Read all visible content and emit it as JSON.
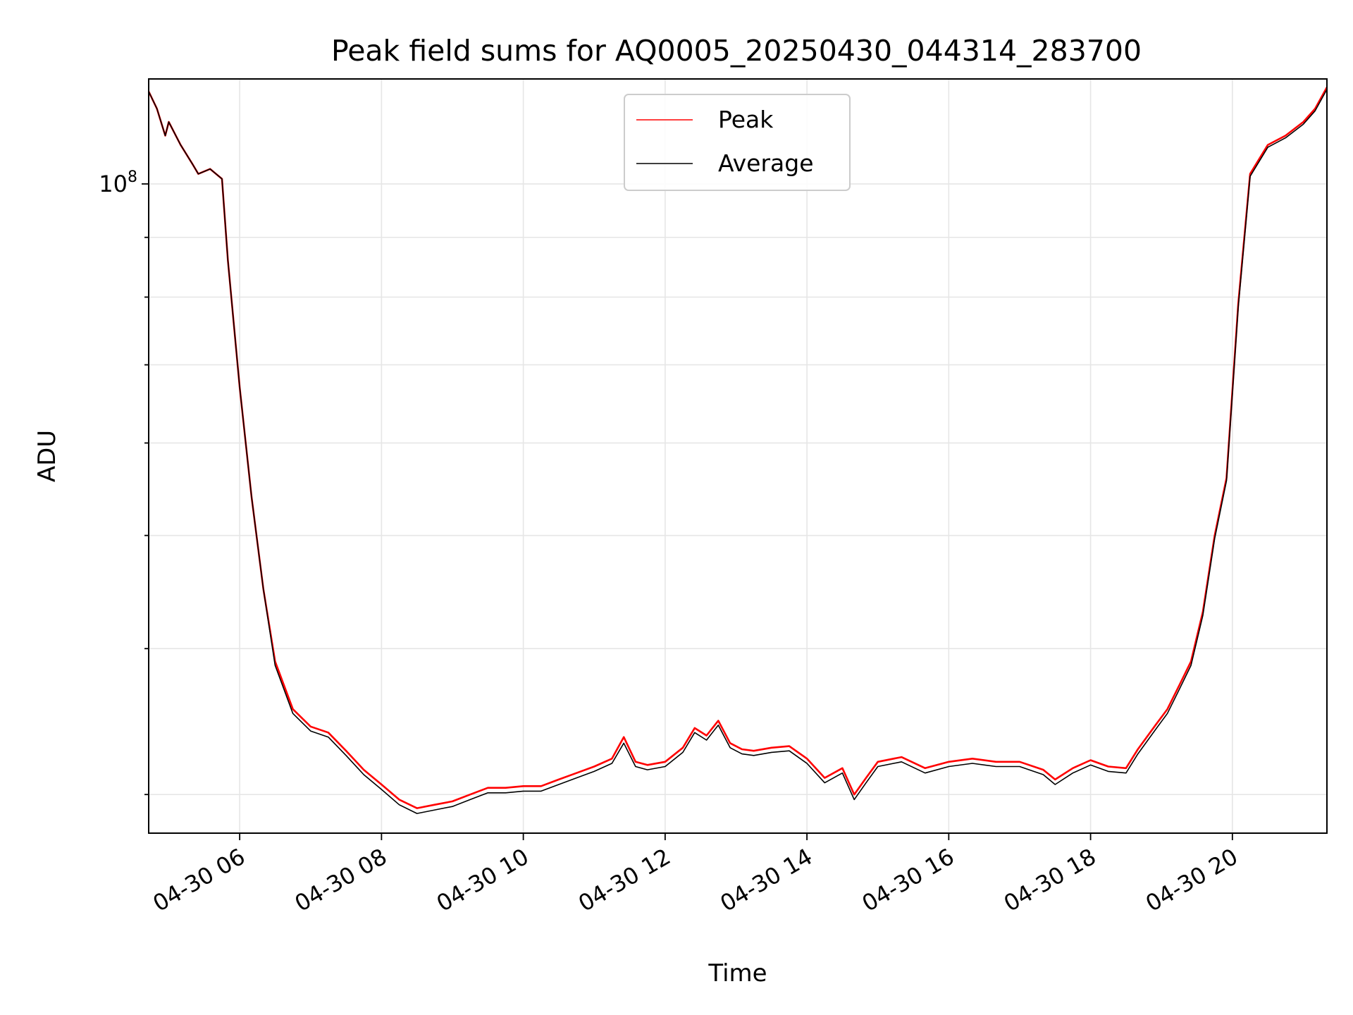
{
  "chart_data": {
    "type": "line",
    "title": "Peak field sums for AQ0005_20250430_044314_283700",
    "xlabel": "Time",
    "ylabel": "ADU",
    "y_scale": "log",
    "ylim": [
      27800000,
      123000000
    ],
    "y_major_ticks": [
      {
        "value": 100000000,
        "base": "10",
        "exp": "8"
      }
    ],
    "y_minor_ticks": [
      30000000,
      40000000,
      50000000,
      60000000,
      70000000,
      80000000,
      90000000
    ],
    "xlim": [
      "2025-04-30T04:43:00",
      "2025-04-30T21:20:00"
    ],
    "x_ticks": [
      {
        "time": "2025-04-30T06:00:00",
        "label": "04-30 06"
      },
      {
        "time": "2025-04-30T08:00:00",
        "label": "04-30 08"
      },
      {
        "time": "2025-04-30T10:00:00",
        "label": "04-30 10"
      },
      {
        "time": "2025-04-30T12:00:00",
        "label": "04-30 12"
      },
      {
        "time": "2025-04-30T14:00:00",
        "label": "04-30 14"
      },
      {
        "time": "2025-04-30T16:00:00",
        "label": "04-30 16"
      },
      {
        "time": "2025-04-30T18:00:00",
        "label": "04-30 18"
      },
      {
        "time": "2025-04-30T20:00:00",
        "label": "04-30 20"
      }
    ],
    "grid": true,
    "legend_position": "top-center",
    "series": [
      {
        "name": "Peak",
        "color": "#ff0000",
        "points": [
          [
            "2025-04-30T04:43:00",
            120000000
          ],
          [
            "2025-04-30T04:50:00",
            116000000
          ],
          [
            "2025-04-30T04:57:00",
            110000000
          ],
          [
            "2025-04-30T05:00:00",
            113000000
          ],
          [
            "2025-04-30T05:10:00",
            108000000
          ],
          [
            "2025-04-30T05:20:00",
            104000000
          ],
          [
            "2025-04-30T05:25:00",
            102000000
          ],
          [
            "2025-04-30T05:35:00",
            103000000
          ],
          [
            "2025-04-30T05:45:00",
            101000000
          ],
          [
            "2025-04-30T05:50:00",
            86000000
          ],
          [
            "2025-04-30T06:00:00",
            67000000
          ],
          [
            "2025-04-30T06:10:00",
            54000000
          ],
          [
            "2025-04-30T06:20:00",
            45000000
          ],
          [
            "2025-04-30T06:30:00",
            39000000
          ],
          [
            "2025-04-30T06:45:00",
            35500000
          ],
          [
            "2025-04-30T07:00:00",
            34300000
          ],
          [
            "2025-04-30T07:15:00",
            33900000
          ],
          [
            "2025-04-30T07:30:00",
            32700000
          ],
          [
            "2025-04-30T07:45:00",
            31500000
          ],
          [
            "2025-04-30T08:00:00",
            30600000
          ],
          [
            "2025-04-30T08:15:00",
            29700000
          ],
          [
            "2025-04-30T08:30:00",
            29200000
          ],
          [
            "2025-04-30T08:45:00",
            29400000
          ],
          [
            "2025-04-30T09:00:00",
            29600000
          ],
          [
            "2025-04-30T09:15:00",
            30000000
          ],
          [
            "2025-04-30T09:30:00",
            30400000
          ],
          [
            "2025-04-30T09:45:00",
            30400000
          ],
          [
            "2025-04-30T10:00:00",
            30500000
          ],
          [
            "2025-04-30T10:15:00",
            30500000
          ],
          [
            "2025-04-30T10:30:00",
            30900000
          ],
          [
            "2025-04-30T10:45:00",
            31300000
          ],
          [
            "2025-04-30T11:00:00",
            31700000
          ],
          [
            "2025-04-30T11:15:00",
            32200000
          ],
          [
            "2025-04-30T11:25:00",
            33600000
          ],
          [
            "2025-04-30T11:35:00",
            32000000
          ],
          [
            "2025-04-30T11:45:00",
            31800000
          ],
          [
            "2025-04-30T12:00:00",
            32000000
          ],
          [
            "2025-04-30T12:15:00",
            32900000
          ],
          [
            "2025-04-30T12:25:00",
            34200000
          ],
          [
            "2025-04-30T12:35:00",
            33700000
          ],
          [
            "2025-04-30T12:45:00",
            34700000
          ],
          [
            "2025-04-30T12:55:00",
            33200000
          ],
          [
            "2025-04-30T13:05:00",
            32800000
          ],
          [
            "2025-04-30T13:15:00",
            32700000
          ],
          [
            "2025-04-30T13:30:00",
            32900000
          ],
          [
            "2025-04-30T13:45:00",
            33000000
          ],
          [
            "2025-04-30T14:00:00",
            32200000
          ],
          [
            "2025-04-30T14:15:00",
            31000000
          ],
          [
            "2025-04-30T14:30:00",
            31600000
          ],
          [
            "2025-04-30T14:40:00",
            30000000
          ],
          [
            "2025-04-30T14:50:00",
            31000000
          ],
          [
            "2025-04-30T15:00:00",
            32000000
          ],
          [
            "2025-04-30T15:20:00",
            32300000
          ],
          [
            "2025-04-30T15:40:00",
            31600000
          ],
          [
            "2025-04-30T16:00:00",
            32000000
          ],
          [
            "2025-04-30T16:20:00",
            32200000
          ],
          [
            "2025-04-30T16:40:00",
            32000000
          ],
          [
            "2025-04-30T17:00:00",
            32000000
          ],
          [
            "2025-04-30T17:20:00",
            31500000
          ],
          [
            "2025-04-30T17:30:00",
            30900000
          ],
          [
            "2025-04-30T17:45:00",
            31600000
          ],
          [
            "2025-04-30T18:00:00",
            32100000
          ],
          [
            "2025-04-30T18:15:00",
            31700000
          ],
          [
            "2025-04-30T18:30:00",
            31600000
          ],
          [
            "2025-04-30T18:40:00",
            32800000
          ],
          [
            "2025-04-30T18:55:00",
            34400000
          ],
          [
            "2025-04-30T19:05:00",
            35500000
          ],
          [
            "2025-04-30T19:15:00",
            37200000
          ],
          [
            "2025-04-30T19:25:00",
            39000000
          ],
          [
            "2025-04-30T19:35:00",
            43000000
          ],
          [
            "2025-04-30T19:45:00",
            50000000
          ],
          [
            "2025-04-30T19:55:00",
            56000000
          ],
          [
            "2025-04-30T20:05:00",
            79000000
          ],
          [
            "2025-04-30T20:15:00",
            102000000
          ],
          [
            "2025-04-30T20:30:00",
            108000000
          ],
          [
            "2025-04-30T20:45:00",
            110000000
          ],
          [
            "2025-04-30T21:00:00",
            113000000
          ],
          [
            "2025-04-30T21:10:00",
            116000000
          ],
          [
            "2025-04-30T21:20:00",
            121000000
          ]
        ]
      },
      {
        "name": "Average",
        "color": "#000000",
        "points": [
          [
            "2025-04-30T04:43:00",
            120000000
          ],
          [
            "2025-04-30T04:50:00",
            116000000
          ],
          [
            "2025-04-30T04:57:00",
            110000000
          ],
          [
            "2025-04-30T05:00:00",
            113000000
          ],
          [
            "2025-04-30T05:10:00",
            108000000
          ],
          [
            "2025-04-30T05:20:00",
            104000000
          ],
          [
            "2025-04-30T05:25:00",
            102000000
          ],
          [
            "2025-04-30T05:35:00",
            103000000
          ],
          [
            "2025-04-30T05:45:00",
            101000000
          ],
          [
            "2025-04-30T05:50:00",
            86000000
          ],
          [
            "2025-04-30T06:00:00",
            67000000
          ],
          [
            "2025-04-30T06:10:00",
            54000000
          ],
          [
            "2025-04-30T06:20:00",
            45000000
          ],
          [
            "2025-04-30T06:30:00",
            38700000
          ],
          [
            "2025-04-30T06:45:00",
            35200000
          ],
          [
            "2025-04-30T07:00:00",
            34000000
          ],
          [
            "2025-04-30T07:15:00",
            33600000
          ],
          [
            "2025-04-30T07:30:00",
            32400000
          ],
          [
            "2025-04-30T07:45:00",
            31200000
          ],
          [
            "2025-04-30T08:00:00",
            30300000
          ],
          [
            "2025-04-30T08:15:00",
            29400000
          ],
          [
            "2025-04-30T08:30:00",
            28900000
          ],
          [
            "2025-04-30T08:45:00",
            29100000
          ],
          [
            "2025-04-30T09:00:00",
            29300000
          ],
          [
            "2025-04-30T09:15:00",
            29700000
          ],
          [
            "2025-04-30T09:30:00",
            30100000
          ],
          [
            "2025-04-30T09:45:00",
            30100000
          ],
          [
            "2025-04-30T10:00:00",
            30200000
          ],
          [
            "2025-04-30T10:15:00",
            30200000
          ],
          [
            "2025-04-30T10:30:00",
            30600000
          ],
          [
            "2025-04-30T10:45:00",
            31000000
          ],
          [
            "2025-04-30T11:00:00",
            31400000
          ],
          [
            "2025-04-30T11:15:00",
            31900000
          ],
          [
            "2025-04-30T11:25:00",
            33200000
          ],
          [
            "2025-04-30T11:35:00",
            31700000
          ],
          [
            "2025-04-30T11:45:00",
            31500000
          ],
          [
            "2025-04-30T12:00:00",
            31700000
          ],
          [
            "2025-04-30T12:15:00",
            32600000
          ],
          [
            "2025-04-30T12:25:00",
            33900000
          ],
          [
            "2025-04-30T12:35:00",
            33400000
          ],
          [
            "2025-04-30T12:45:00",
            34400000
          ],
          [
            "2025-04-30T12:55:00",
            32900000
          ],
          [
            "2025-04-30T13:05:00",
            32500000
          ],
          [
            "2025-04-30T13:15:00",
            32400000
          ],
          [
            "2025-04-30T13:30:00",
            32600000
          ],
          [
            "2025-04-30T13:45:00",
            32700000
          ],
          [
            "2025-04-30T14:00:00",
            31900000
          ],
          [
            "2025-04-30T14:15:00",
            30700000
          ],
          [
            "2025-04-30T14:30:00",
            31300000
          ],
          [
            "2025-04-30T14:40:00",
            29700000
          ],
          [
            "2025-04-30T14:50:00",
            30700000
          ],
          [
            "2025-04-30T15:00:00",
            31700000
          ],
          [
            "2025-04-30T15:20:00",
            32000000
          ],
          [
            "2025-04-30T15:40:00",
            31300000
          ],
          [
            "2025-04-30T16:00:00",
            31700000
          ],
          [
            "2025-04-30T16:20:00",
            31900000
          ],
          [
            "2025-04-30T16:40:00",
            31700000
          ],
          [
            "2025-04-30T17:00:00",
            31700000
          ],
          [
            "2025-04-30T17:20:00",
            31200000
          ],
          [
            "2025-04-30T17:30:00",
            30600000
          ],
          [
            "2025-04-30T17:45:00",
            31300000
          ],
          [
            "2025-04-30T18:00:00",
            31800000
          ],
          [
            "2025-04-30T18:15:00",
            31400000
          ],
          [
            "2025-04-30T18:30:00",
            31300000
          ],
          [
            "2025-04-30T18:40:00",
            32500000
          ],
          [
            "2025-04-30T18:55:00",
            34100000
          ],
          [
            "2025-04-30T19:05:00",
            35200000
          ],
          [
            "2025-04-30T19:15:00",
            36900000
          ],
          [
            "2025-04-30T19:25:00",
            38700000
          ],
          [
            "2025-04-30T19:35:00",
            42700000
          ],
          [
            "2025-04-30T19:45:00",
            49700000
          ],
          [
            "2025-04-30T19:55:00",
            55700000
          ],
          [
            "2025-04-30T20:05:00",
            78500000
          ],
          [
            "2025-04-30T20:15:00",
            101500000
          ],
          [
            "2025-04-30T20:30:00",
            107500000
          ],
          [
            "2025-04-30T20:45:00",
            109500000
          ],
          [
            "2025-04-30T21:00:00",
            112500000
          ],
          [
            "2025-04-30T21:10:00",
            115500000
          ],
          [
            "2025-04-30T21:20:00",
            120500000
          ]
        ]
      }
    ]
  }
}
